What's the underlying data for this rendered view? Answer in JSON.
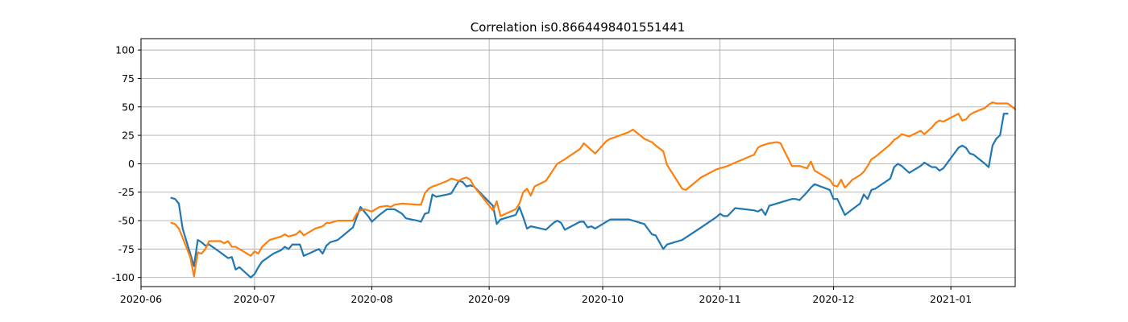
{
  "chart_data": {
    "type": "line",
    "title": "Correlation is0.8664498401551441",
    "xlabel": "",
    "ylabel": "",
    "xlim": [
      "2020-06-01",
      "2021-01-18"
    ],
    "ylim": [
      -108,
      110
    ],
    "grid": true,
    "x_ticks": [
      "2020-06-01",
      "2020-07-01",
      "2020-08-01",
      "2020-09-01",
      "2020-10-01",
      "2020-11-01",
      "2020-12-01",
      "2021-01-01"
    ],
    "x_tick_labels": [
      "2020-06",
      "2020-07",
      "2020-08",
      "2020-09",
      "2020-10",
      "2020-11",
      "2020-12",
      "2021-01"
    ],
    "y_ticks": [
      -100,
      -75,
      -50,
      -25,
      0,
      25,
      50,
      75,
      100
    ],
    "y_tick_labels": [
      "-100",
      "-75",
      "-50",
      "-25",
      "0",
      "25",
      "50",
      "75",
      "100"
    ],
    "series": [
      {
        "color": "#1f77b4",
        "points": [
          [
            "2020-06-09",
            -30
          ],
          [
            "2020-06-10",
            -31
          ],
          [
            "2020-06-11",
            -35
          ],
          [
            "2020-06-12",
            -57
          ],
          [
            "2020-06-15",
            -90
          ],
          [
            "2020-06-16",
            -67
          ],
          [
            "2020-06-17",
            -69
          ],
          [
            "2020-06-18",
            -72
          ],
          [
            "2020-06-19",
            -71
          ],
          [
            "2020-06-22",
            -78
          ],
          [
            "2020-06-24",
            -83
          ],
          [
            "2020-06-25",
            -82
          ],
          [
            "2020-06-26",
            -93
          ],
          [
            "2020-06-27",
            -91
          ],
          [
            "2020-06-30",
            -100
          ],
          [
            "2020-07-01",
            -97
          ],
          [
            "2020-07-02",
            -91
          ],
          [
            "2020-07-03",
            -86
          ],
          [
            "2020-07-06",
            -79
          ],
          [
            "2020-07-08",
            -76
          ],
          [
            "2020-07-09",
            -73
          ],
          [
            "2020-07-10",
            -75
          ],
          [
            "2020-07-11",
            -71
          ],
          [
            "2020-07-13",
            -71
          ],
          [
            "2020-07-14",
            -81
          ],
          [
            "2020-07-16",
            -78
          ],
          [
            "2020-07-18",
            -75
          ],
          [
            "2020-07-19",
            -79
          ],
          [
            "2020-07-20",
            -72
          ],
          [
            "2020-07-21",
            -69
          ],
          [
            "2020-07-23",
            -67
          ],
          [
            "2020-07-27",
            -56
          ],
          [
            "2020-07-29",
            -38
          ],
          [
            "2020-07-30",
            -42
          ],
          [
            "2020-07-31",
            -46
          ],
          [
            "2020-08-01",
            -51
          ],
          [
            "2020-08-03",
            -45
          ],
          [
            "2020-08-05",
            -40
          ],
          [
            "2020-08-07",
            -40
          ],
          [
            "2020-08-09",
            -44
          ],
          [
            "2020-08-10",
            -48
          ],
          [
            "2020-08-13",
            -50
          ],
          [
            "2020-08-14",
            -51
          ],
          [
            "2020-08-15",
            -44
          ],
          [
            "2020-08-16",
            -43
          ],
          [
            "2020-08-17",
            -27
          ],
          [
            "2020-08-18",
            -29
          ],
          [
            "2020-08-21",
            -27
          ],
          [
            "2020-08-22",
            -26
          ],
          [
            "2020-08-24",
            -15
          ],
          [
            "2020-08-25",
            -16
          ],
          [
            "2020-08-26",
            -20
          ],
          [
            "2020-08-27",
            -19
          ],
          [
            "2020-08-28",
            -20
          ],
          [
            "2020-09-02",
            -37
          ],
          [
            "2020-09-03",
            -53
          ],
          [
            "2020-09-04",
            -49
          ],
          [
            "2020-09-08",
            -45
          ],
          [
            "2020-09-09",
            -38
          ],
          [
            "2020-09-10",
            -47
          ],
          [
            "2020-09-11",
            -57
          ],
          [
            "2020-09-12",
            -55
          ],
          [
            "2020-09-16",
            -58
          ],
          [
            "2020-09-18",
            -52
          ],
          [
            "2020-09-19",
            -50
          ],
          [
            "2020-09-20",
            -52
          ],
          [
            "2020-09-21",
            -58
          ],
          [
            "2020-09-25",
            -51
          ],
          [
            "2020-09-26",
            -51
          ],
          [
            "2020-09-27",
            -56
          ],
          [
            "2020-09-28",
            -55
          ],
          [
            "2020-09-29",
            -57
          ],
          [
            "2020-10-02",
            -51
          ],
          [
            "2020-10-03",
            -49
          ],
          [
            "2020-10-04",
            -49
          ],
          [
            "2020-10-08",
            -49
          ],
          [
            "2020-10-09",
            -50
          ],
          [
            "2020-10-12",
            -53
          ],
          [
            "2020-10-14",
            -62
          ],
          [
            "2020-10-15",
            -63
          ],
          [
            "2020-10-17",
            -75
          ],
          [
            "2020-10-18",
            -71
          ],
          [
            "2020-10-22",
            -67
          ],
          [
            "2020-10-27",
            -56
          ],
          [
            "2020-10-31",
            -47
          ],
          [
            "2020-11-01",
            -44
          ],
          [
            "2020-11-02",
            -46
          ],
          [
            "2020-11-03",
            -46
          ],
          [
            "2020-11-05",
            -39
          ],
          [
            "2020-11-10",
            -41
          ],
          [
            "2020-11-11",
            -42
          ],
          [
            "2020-11-12",
            -40
          ],
          [
            "2020-11-13",
            -45
          ],
          [
            "2020-11-14",
            -37
          ],
          [
            "2020-11-16",
            -35
          ],
          [
            "2020-11-20",
            -31
          ],
          [
            "2020-11-21",
            -31
          ],
          [
            "2020-11-22",
            -32
          ],
          [
            "2020-11-24",
            -25
          ],
          [
            "2020-11-25",
            -21
          ],
          [
            "2020-11-26",
            -18
          ],
          [
            "2020-11-30",
            -23
          ],
          [
            "2020-12-01",
            -31
          ],
          [
            "2020-12-02",
            -31
          ],
          [
            "2020-12-04",
            -45
          ],
          [
            "2020-12-06",
            -40
          ],
          [
            "2020-12-08",
            -35
          ],
          [
            "2020-12-09",
            -27
          ],
          [
            "2020-12-10",
            -31
          ],
          [
            "2020-12-11",
            -23
          ],
          [
            "2020-12-12",
            -22
          ],
          [
            "2020-12-16",
            -13
          ],
          [
            "2020-12-17",
            -3
          ],
          [
            "2020-12-18",
            0
          ],
          [
            "2020-12-19",
            -2
          ],
          [
            "2020-12-21",
            -8
          ],
          [
            "2020-12-24",
            -2
          ],
          [
            "2020-12-25",
            1
          ],
          [
            "2020-12-27",
            -3
          ],
          [
            "2020-12-28",
            -3
          ],
          [
            "2020-12-29",
            -6
          ],
          [
            "2020-12-30",
            -4
          ],
          [
            "2021-01-03",
            14
          ],
          [
            "2021-01-04",
            16
          ],
          [
            "2021-01-05",
            14
          ],
          [
            "2021-01-06",
            9
          ],
          [
            "2021-01-07",
            8
          ],
          [
            "2021-01-10",
            0
          ],
          [
            "2021-01-11",
            -3
          ],
          [
            "2021-01-12",
            16
          ],
          [
            "2021-01-13",
            22
          ],
          [
            "2021-01-14",
            25
          ],
          [
            "2021-01-15",
            44
          ],
          [
            "2021-01-16",
            44
          ]
        ]
      },
      {
        "color": "#ff7f0e",
        "points": [
          [
            "2020-06-09",
            -52
          ],
          [
            "2020-06-10",
            -53
          ],
          [
            "2020-06-11",
            -57
          ],
          [
            "2020-06-12",
            -65
          ],
          [
            "2020-06-14",
            -82
          ],
          [
            "2020-06-15",
            -99
          ],
          [
            "2020-06-16",
            -78
          ],
          [
            "2020-06-17",
            -79
          ],
          [
            "2020-06-18",
            -75
          ],
          [
            "2020-06-19",
            -68
          ],
          [
            "2020-06-22",
            -68
          ],
          [
            "2020-06-23",
            -70
          ],
          [
            "2020-06-24",
            -68
          ],
          [
            "2020-06-25",
            -73
          ],
          [
            "2020-06-26",
            -73
          ],
          [
            "2020-06-28",
            -77
          ],
          [
            "2020-06-30",
            -81
          ],
          [
            "2020-07-01",
            -77
          ],
          [
            "2020-07-02",
            -79
          ],
          [
            "2020-07-03",
            -73
          ],
          [
            "2020-07-05",
            -67
          ],
          [
            "2020-07-06",
            -66
          ],
          [
            "2020-07-08",
            -64
          ],
          [
            "2020-07-09",
            -62
          ],
          [
            "2020-07-10",
            -64
          ],
          [
            "2020-07-12",
            -62
          ],
          [
            "2020-07-13",
            -59
          ],
          [
            "2020-07-14",
            -63
          ],
          [
            "2020-07-16",
            -59
          ],
          [
            "2020-07-17",
            -57
          ],
          [
            "2020-07-18",
            -56
          ],
          [
            "2020-07-19",
            -55
          ],
          [
            "2020-07-20",
            -52
          ],
          [
            "2020-07-21",
            -52
          ],
          [
            "2020-07-23",
            -50
          ],
          [
            "2020-07-27",
            -50
          ],
          [
            "2020-07-28",
            -44
          ],
          [
            "2020-07-29",
            -41
          ],
          [
            "2020-07-30",
            -40
          ],
          [
            "2020-07-31",
            -41
          ],
          [
            "2020-08-01",
            -42
          ],
          [
            "2020-08-03",
            -38
          ],
          [
            "2020-08-05",
            -37
          ],
          [
            "2020-08-06",
            -38
          ],
          [
            "2020-08-07",
            -36
          ],
          [
            "2020-08-09",
            -35
          ],
          [
            "2020-08-13",
            -36
          ],
          [
            "2020-08-14",
            -36
          ],
          [
            "2020-08-15",
            -26
          ],
          [
            "2020-08-16",
            -22
          ],
          [
            "2020-08-17",
            -20
          ],
          [
            "2020-08-18",
            -19
          ],
          [
            "2020-08-21",
            -15
          ],
          [
            "2020-08-22",
            -13
          ],
          [
            "2020-08-24",
            -15
          ],
          [
            "2020-08-25",
            -13
          ],
          [
            "2020-08-26",
            -12
          ],
          [
            "2020-08-27",
            -14
          ],
          [
            "2020-08-28",
            -20
          ],
          [
            "2020-09-02",
            -41
          ],
          [
            "2020-09-03",
            -33
          ],
          [
            "2020-09-04",
            -46
          ],
          [
            "2020-09-08",
            -40
          ],
          [
            "2020-09-09",
            -35
          ],
          [
            "2020-09-10",
            -25
          ],
          [
            "2020-09-11",
            -22
          ],
          [
            "2020-09-12",
            -28
          ],
          [
            "2020-09-13",
            -20
          ],
          [
            "2020-09-16",
            -15
          ],
          [
            "2020-09-18",
            -5
          ],
          [
            "2020-09-19",
            0
          ],
          [
            "2020-09-20",
            2
          ],
          [
            "2020-09-21",
            4
          ],
          [
            "2020-09-25",
            13
          ],
          [
            "2020-09-26",
            18
          ],
          [
            "2020-09-27",
            15
          ],
          [
            "2020-09-29",
            9
          ],
          [
            "2020-10-02",
            20
          ],
          [
            "2020-10-03",
            22
          ],
          [
            "2020-10-04",
            23
          ],
          [
            "2020-10-08",
            28
          ],
          [
            "2020-10-09",
            30
          ],
          [
            "2020-10-12",
            22
          ],
          [
            "2020-10-14",
            19
          ],
          [
            "2020-10-15",
            16
          ],
          [
            "2020-10-17",
            11
          ],
          [
            "2020-10-18",
            -1
          ],
          [
            "2020-10-22",
            -22
          ],
          [
            "2020-10-23",
            -23
          ],
          [
            "2020-10-27",
            -12
          ],
          [
            "2020-10-31",
            -5
          ],
          [
            "2020-11-01",
            -4
          ],
          [
            "2020-11-02",
            -3
          ],
          [
            "2020-11-03",
            -2
          ],
          [
            "2020-11-05",
            1
          ],
          [
            "2020-11-10",
            8
          ],
          [
            "2020-11-11",
            14
          ],
          [
            "2020-11-12",
            16
          ],
          [
            "2020-11-13",
            17
          ],
          [
            "2020-11-14",
            18
          ],
          [
            "2020-11-16",
            19
          ],
          [
            "2020-11-17",
            18
          ],
          [
            "2020-11-20",
            -2
          ],
          [
            "2020-11-22",
            -2
          ],
          [
            "2020-11-24",
            -4
          ],
          [
            "2020-11-25",
            2
          ],
          [
            "2020-11-26",
            -6
          ],
          [
            "2020-11-30",
            -14
          ],
          [
            "2020-12-01",
            -19
          ],
          [
            "2020-12-02",
            -20
          ],
          [
            "2020-12-03",
            -14
          ],
          [
            "2020-12-04",
            -21
          ],
          [
            "2020-12-06",
            -14
          ],
          [
            "2020-12-08",
            -10
          ],
          [
            "2020-12-09",
            -7
          ],
          [
            "2020-12-10",
            -2
          ],
          [
            "2020-12-11",
            4
          ],
          [
            "2020-12-12",
            6
          ],
          [
            "2020-12-16",
            17
          ],
          [
            "2020-12-17",
            21
          ],
          [
            "2020-12-18",
            23
          ],
          [
            "2020-12-19",
            26
          ],
          [
            "2020-12-21",
            24
          ],
          [
            "2020-12-24",
            29
          ],
          [
            "2020-12-25",
            26
          ],
          [
            "2020-12-27",
            32
          ],
          [
            "2020-12-28",
            36
          ],
          [
            "2020-12-29",
            38
          ],
          [
            "2020-12-30",
            37
          ],
          [
            "2021-01-03",
            44
          ],
          [
            "2021-01-04",
            38
          ],
          [
            "2021-01-05",
            39
          ],
          [
            "2021-01-06",
            43
          ],
          [
            "2021-01-07",
            45
          ],
          [
            "2021-01-10",
            49
          ],
          [
            "2021-01-11",
            52
          ],
          [
            "2021-01-12",
            54
          ],
          [
            "2021-01-13",
            53
          ],
          [
            "2021-01-14",
            53
          ],
          [
            "2021-01-15",
            53
          ],
          [
            "2021-01-16",
            53
          ],
          [
            "2021-01-18",
            48
          ]
        ]
      }
    ]
  }
}
